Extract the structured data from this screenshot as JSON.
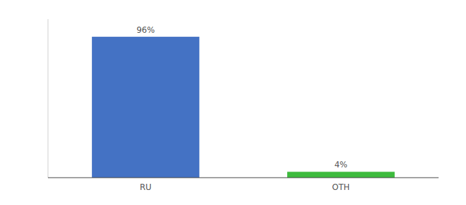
{
  "chart_data": {
    "type": "bar",
    "categories": [
      "RU",
      "OTH"
    ],
    "values": [
      96,
      4
    ],
    "colors": [
      "#4472c4",
      "#3dbb3d"
    ],
    "ylim": [
      0,
      108
    ],
    "data_labels": true,
    "value_labels": [
      "96%",
      "4%"
    ],
    "tick_labels": "x"
  }
}
